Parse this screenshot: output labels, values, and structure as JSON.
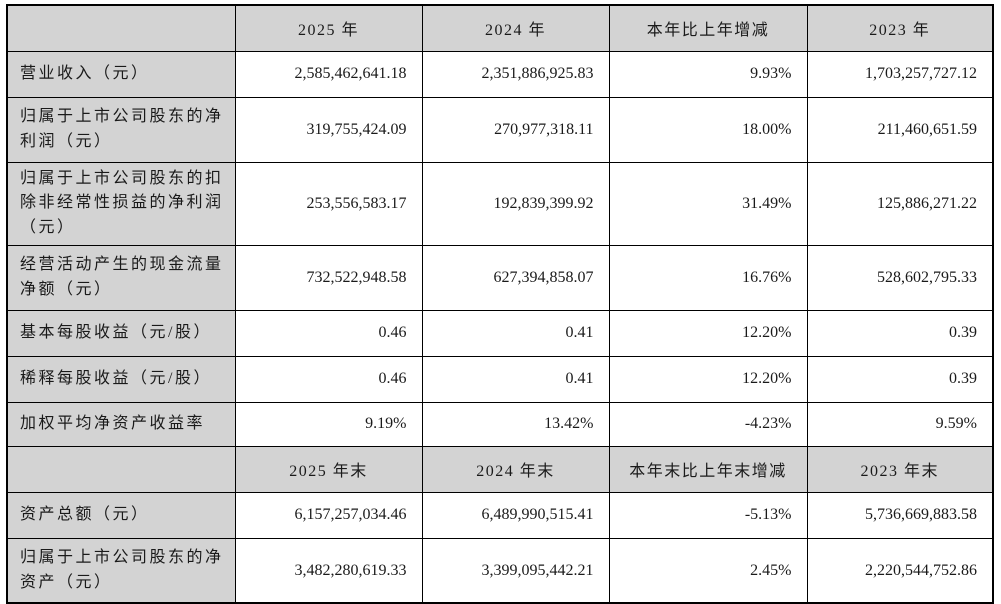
{
  "table_title_semantic": "主要会计数据和财务指标",
  "colors": {
    "header_bg": "#d3d3d3",
    "label_bg": "#d3d3d3",
    "cell_bg": "#ffffff",
    "border_color": "#000000"
  },
  "section1": {
    "corner": "",
    "headers": [
      "2025 年",
      "2024 年",
      "本年比上年增减",
      "2023 年"
    ],
    "rows": [
      {
        "label": "营业收入（元）",
        "values": [
          "2,585,462,641.18",
          "2,351,886,925.83",
          "9.93%",
          "1,703,257,727.12"
        ]
      },
      {
        "label": "归属于上市公司股东的净利润（元）",
        "values": [
          "319,755,424.09",
          "270,977,318.11",
          "18.00%",
          "211,460,651.59"
        ]
      },
      {
        "label": "归属于上市公司股东的扣除非经常性损益的净利润（元）",
        "values": [
          "253,556,583.17",
          "192,839,399.92",
          "31.49%",
          "125,886,271.22"
        ]
      },
      {
        "label": "经营活动产生的现金流量净额（元）",
        "values": [
          "732,522,948.58",
          "627,394,858.07",
          "16.76%",
          "528,602,795.33"
        ]
      },
      {
        "label": "基本每股收益（元/股）",
        "values": [
          "0.46",
          "0.41",
          "12.20%",
          "0.39"
        ]
      },
      {
        "label": "稀释每股收益（元/股）",
        "values": [
          "0.46",
          "0.41",
          "12.20%",
          "0.39"
        ]
      },
      {
        "label": "加权平均净资产收益率",
        "values": [
          "9.19%",
          "13.42%",
          "-4.23%",
          "9.59%"
        ]
      }
    ]
  },
  "section2": {
    "corner": "",
    "headers": [
      "2025 年末",
      "2024 年末",
      "本年末比上年末增减",
      "2023 年末"
    ],
    "rows": [
      {
        "label": "资产总额（元）",
        "values": [
          "6,157,257,034.46",
          "6,489,990,515.41",
          "-5.13%",
          "5,736,669,883.58"
        ]
      },
      {
        "label": "归属于上市公司股东的净资产（元）",
        "values": [
          "3,482,280,619.33",
          "3,399,095,442.21",
          "2.45%",
          "2,220,544,752.86"
        ]
      }
    ]
  }
}
